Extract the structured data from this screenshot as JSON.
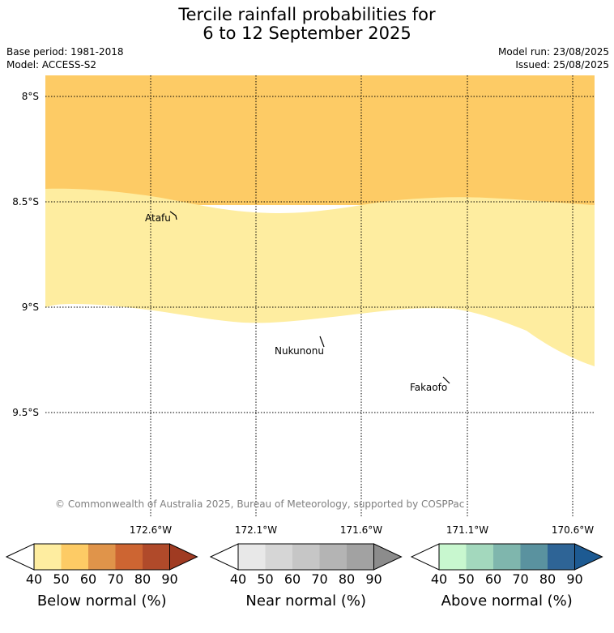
{
  "header": {
    "title_line1": "Tercile rainfall probabilities for",
    "title_line2": "6 to 12 September 2025",
    "base_period": "Base period: 1981-2018",
    "model": "Model: ACCESS-S2",
    "model_run": "Model run: 23/08/2025",
    "issued": "Issued: 25/08/2025"
  },
  "map": {
    "lat_labels": [
      "8°S",
      "8.5°S",
      "9°S",
      "9.5°S"
    ],
    "lon_labels_panel1": [
      "172.6°W"
    ],
    "lon_labels_panel2": [
      "172.1°W",
      "171.6°W"
    ],
    "lon_labels_panel3": [
      "171.1°W",
      "170.6°W"
    ],
    "places": [
      "Atafu",
      "Nukunonu",
      "Fakaofo"
    ],
    "copyright": "© Commonwealth of Australia 2025, Bureau of Meteorology, supported by COSPPac",
    "colors": {
      "below_50_60": "#fdcb65",
      "below_40_50": "#feeda0"
    }
  },
  "legends": [
    {
      "title": "Below normal (%)",
      "ticks": [
        "40",
        "50",
        "60",
        "70",
        "80",
        "90"
      ],
      "colors": [
        "#ffffff",
        "#feeda0",
        "#fdcb65",
        "#e0944a",
        "#cd6532",
        "#b04a2a",
        "#a03b22"
      ]
    },
    {
      "title": "Near normal (%)",
      "ticks": [
        "40",
        "50",
        "60",
        "70",
        "80",
        "90"
      ],
      "colors": [
        "#ffffff",
        "#e8e8e8",
        "#d6d6d6",
        "#c6c6c6",
        "#b4b4b4",
        "#a2a2a2",
        "#8c8c8c"
      ]
    },
    {
      "title": "Above normal (%)",
      "ticks": [
        "40",
        "50",
        "60",
        "70",
        "80",
        "90"
      ],
      "colors": [
        "#ffffff",
        "#c8f7cf",
        "#a3d8bd",
        "#7fb6ad",
        "#5a929f",
        "#2e6496",
        "#1d5a92"
      ]
    }
  ]
}
